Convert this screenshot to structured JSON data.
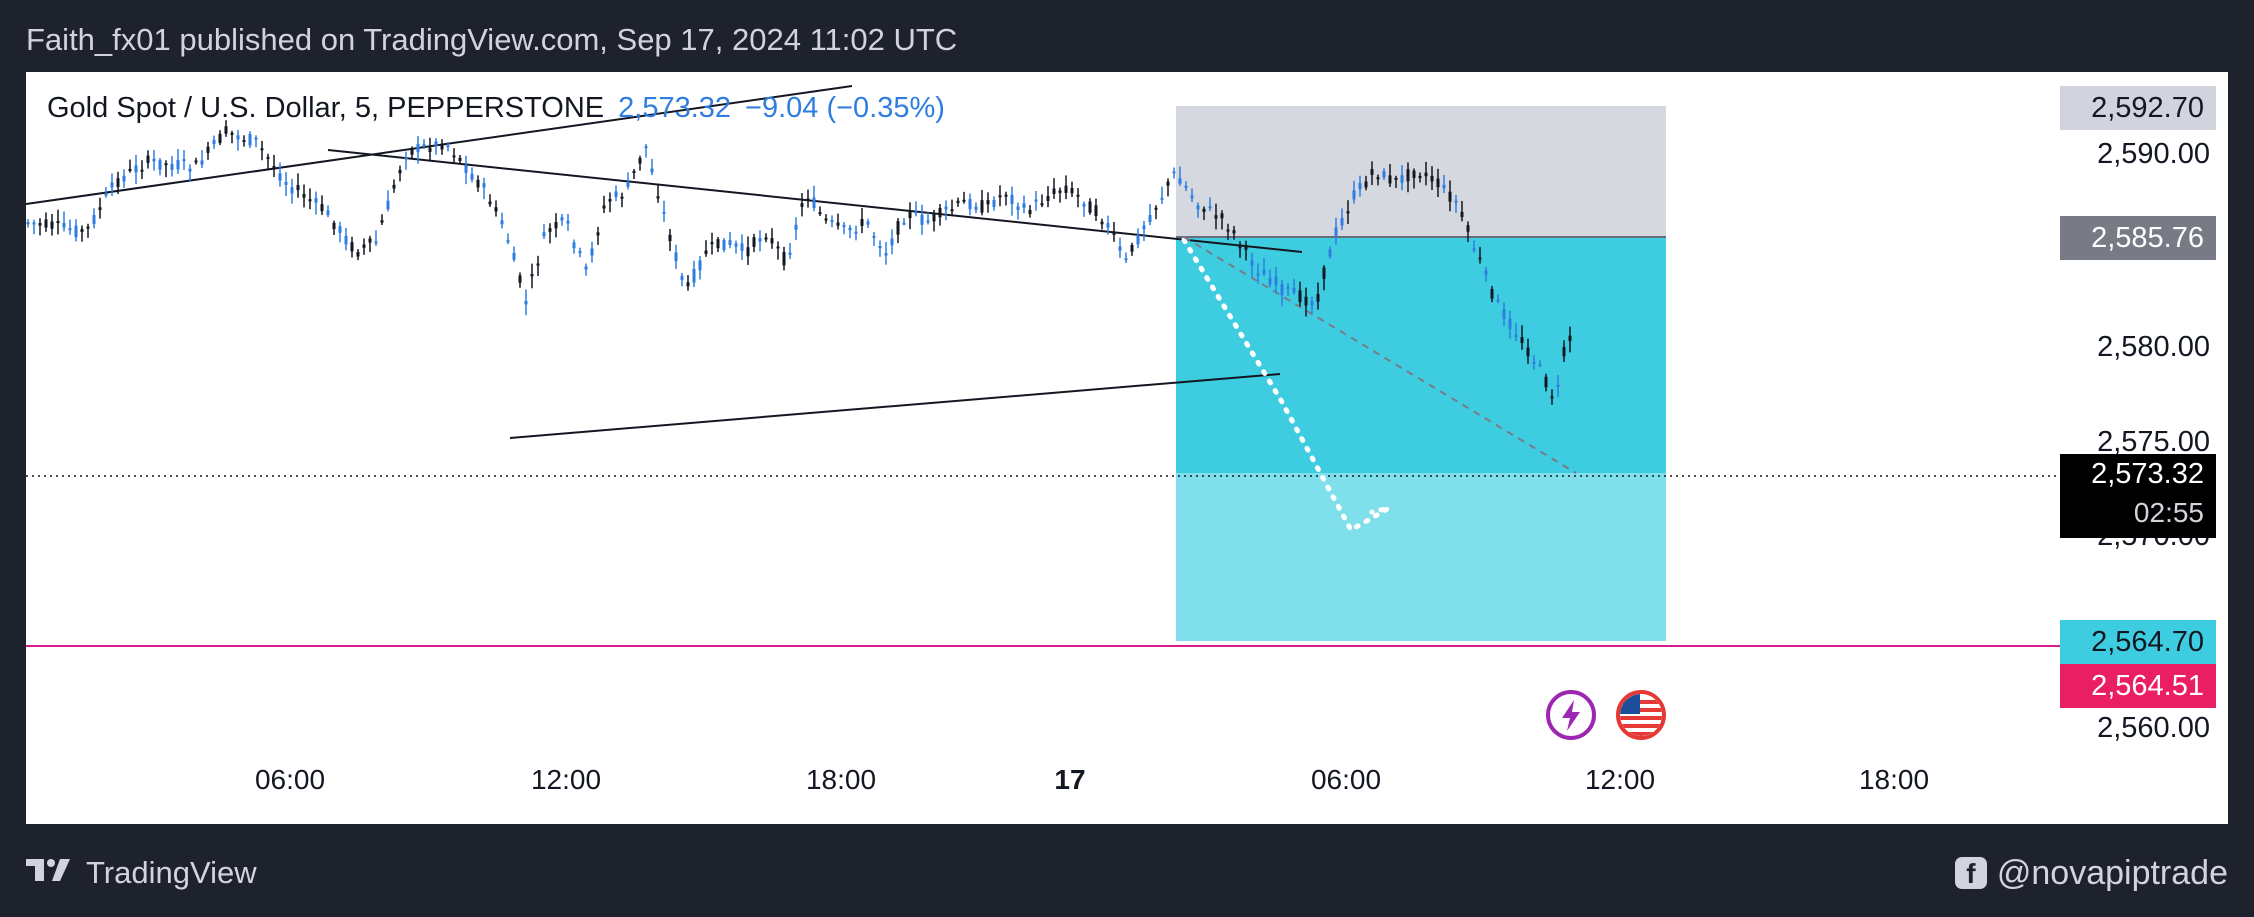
{
  "header": {
    "publish_text": "Faith_fx01 published on TradingView.com, Sep 17, 2024 11:02 UTC"
  },
  "symbol": {
    "name": "Gold Spot / U.S. Dollar, 5, PEPPERSTONE",
    "price": "2,573.32",
    "change": "−9.04 (−0.35%)"
  },
  "price_scale": {
    "labels": [
      "2,590.00",
      "2,580.00",
      "2,575.00",
      "2,570.00",
      "2,560.00"
    ],
    "tag_top": "2,592.70",
    "tag_entry": "2,585.76",
    "tag_last": "2,573.32",
    "tag_countdown": "02:55",
    "tag_target": "2,564.70",
    "tag_line": "2,564.51"
  },
  "time_axis": {
    "labels": [
      "06:00",
      "12:00",
      "18:00",
      "17",
      "06:00",
      "12:00",
      "18:00"
    ]
  },
  "colors": {
    "bull": "#131722",
    "bear": "#2f7de1",
    "stop_zone": "#d1d4dc",
    "target_zone": "#3ecde0",
    "hline": "#d81b8c",
    "countdown_bg": "#000000",
    "target_tag": "#3ecde0",
    "line_tag": "#e91e63",
    "gray_tag": "#d1d4dc",
    "entry_tag": "#787b86"
  },
  "events": {
    "left_icon": "lightning-event-icon",
    "right_icon": "us-flag-event-icon"
  },
  "footer": {
    "brand": "TradingView",
    "handle": "@novapiptrade",
    "handle_icon": "facebook-icon"
  }
}
